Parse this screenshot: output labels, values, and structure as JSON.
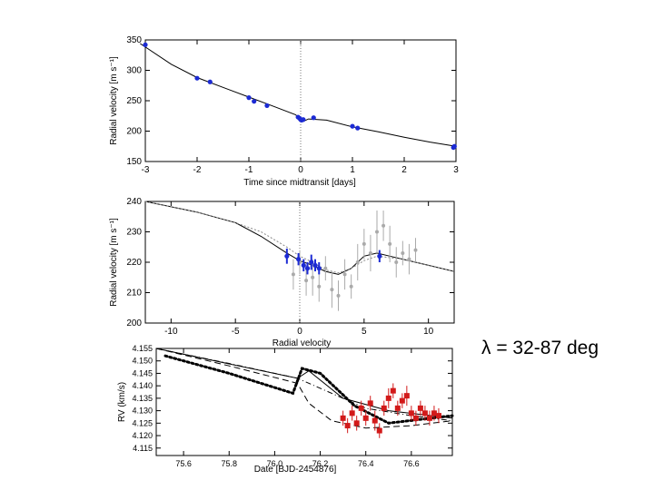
{
  "slide": {
    "caption": "λ = 32-87 deg"
  },
  "chart_data": [
    {
      "type": "line",
      "title": "",
      "xlabel": "Time since midtransit [days]",
      "ylabel": "Radial velocity [m s⁻¹]",
      "xlim": [
        -3,
        3
      ],
      "ylim": [
        150,
        350
      ],
      "xticks": [
        -3,
        -2,
        -1,
        0,
        1,
        2,
        3
      ],
      "yticks": [
        150,
        200,
        250,
        300,
        350
      ],
      "vline_x": 0,
      "series": [
        {
          "name": "model",
          "style": "line",
          "x": [
            -3.1,
            -2.5,
            -2.0,
            -1.5,
            -1.0,
            -0.5,
            -0.1,
            0.0,
            0.05,
            0.15,
            0.5,
            1.0,
            1.5,
            2.0,
            2.5,
            3.0
          ],
          "y": [
            344,
            310,
            288,
            272,
            256,
            240,
            227,
            220,
            216,
            220,
            218,
            207,
            199,
            190,
            182,
            175
          ]
        },
        {
          "name": "RV data",
          "style": "points",
          "x": [
            -3.0,
            -2.0,
            -1.75,
            -1.0,
            -0.9,
            -0.65,
            -0.05,
            -0.02,
            0.0,
            0.02,
            0.05,
            0.25,
            1.0,
            1.1,
            2.95,
            2.97
          ],
          "y": [
            342,
            287,
            281,
            255,
            249,
            242,
            223,
            221,
            219,
            218,
            219,
            222,
            208,
            205,
            173,
            175
          ]
        }
      ]
    },
    {
      "type": "line",
      "title": "",
      "xlabel": "Radial velocity",
      "ylabel": "Radial velocity [m s⁻¹]",
      "xlim": [
        -12,
        12
      ],
      "ylim": [
        200,
        240
      ],
      "xticks": [
        -10,
        -5,
        0,
        5,
        10
      ],
      "yticks": [
        200,
        210,
        220,
        230,
        240
      ],
      "vline_x": 0,
      "series": [
        {
          "name": "model",
          "style": "line",
          "x": [
            -12,
            -8,
            -5,
            -3,
            -1,
            0,
            1,
            2,
            3,
            4,
            5,
            6,
            7,
            8,
            9,
            10,
            12
          ],
          "y": [
            240,
            236.5,
            233,
            228.5,
            223,
            220.5,
            219,
            217,
            216,
            218,
            222,
            223,
            222,
            221,
            220,
            219,
            217
          ]
        },
        {
          "name": "model (alternative)",
          "style": "dotted",
          "x": [
            -12,
            -8,
            -5,
            -3,
            -1,
            0,
            1,
            2,
            3,
            4,
            5,
            6,
            7,
            8,
            10,
            12
          ],
          "y": [
            240,
            236.5,
            233,
            230,
            225,
            222,
            220,
            217.5,
            216.5,
            218,
            220.5,
            222,
            221.5,
            221,
            219,
            217
          ]
        },
        {
          "name": "in-transit data",
          "style": "errorbars-gray",
          "x": [
            -0.5,
            0,
            0.5,
            1,
            1.5,
            2,
            2.5,
            3,
            3.5,
            4,
            4.5,
            5,
            5.5,
            6,
            6.5,
            7,
            7.5,
            8,
            8.5,
            9
          ],
          "y": [
            216,
            220,
            214,
            215,
            212,
            218,
            211,
            209,
            216,
            212,
            220,
            226,
            223,
            230,
            232,
            226,
            220,
            223,
            221,
            224
          ],
          "err": [
            5,
            4,
            5,
            6,
            5,
            4,
            6,
            5,
            5,
            4,
            6,
            5,
            6,
            7,
            5,
            6,
            5,
            4,
            5,
            4
          ]
        },
        {
          "name": "out-of-transit data",
          "style": "errorbars-blue",
          "x": [
            -1.0,
            -0.1,
            0.3,
            0.6,
            0.9,
            1.2,
            1.5,
            6.2
          ],
          "y": [
            222,
            221,
            219,
            218,
            220,
            219,
            218,
            222
          ],
          "err": [
            2.5,
            2,
            2,
            2,
            2.5,
            2,
            2,
            2
          ]
        }
      ]
    },
    {
      "type": "line",
      "title": "",
      "xlabel": "Date [BJD-2454876]",
      "ylabel": "RV (km/s)",
      "xlim": [
        75.48,
        76.78
      ],
      "ylim": [
        4.112,
        4.155
      ],
      "xticks": [
        75.6,
        75.8,
        76.0,
        76.2,
        76.4,
        76.6
      ],
      "yticks": [
        4.115,
        4.12,
        4.125,
        4.13,
        4.135,
        4.14,
        4.145,
        4.15,
        4.155
      ],
      "series": [
        {
          "name": "model solid",
          "style": "solid",
          "x": [
            75.48,
            76.1,
            76.15,
            76.3,
            76.5,
            76.78
          ],
          "y": [
            4.155,
            4.143,
            4.146,
            4.135,
            4.13,
            4.127
          ]
        },
        {
          "name": "model dashed",
          "style": "dashed",
          "x": [
            75.48,
            75.8,
            76.1,
            76.15,
            76.25,
            76.4,
            76.6,
            76.78
          ],
          "y": [
            4.155,
            4.148,
            4.141,
            4.133,
            4.126,
            4.123,
            4.124,
            4.126
          ]
        },
        {
          "name": "model dash-dot",
          "style": "dashdot",
          "x": [
            75.48,
            75.8,
            76.1,
            76.4,
            76.6,
            76.78
          ],
          "y": [
            4.155,
            4.149,
            4.143,
            4.131,
            4.128,
            4.126
          ]
        },
        {
          "name": "model thick dotted",
          "style": "thickdot",
          "x": [
            75.52,
            75.8,
            76.08,
            76.12,
            76.2,
            76.35,
            76.5,
            76.78
          ],
          "y": [
            4.152,
            4.145,
            4.137,
            4.147,
            4.145,
            4.132,
            4.125,
            4.128
          ]
        },
        {
          "name": "RV data",
          "style": "errorbars-red",
          "x": [
            76.3,
            76.32,
            76.34,
            76.36,
            76.38,
            76.4,
            76.42,
            76.44,
            76.46,
            76.48,
            76.5,
            76.52,
            76.54,
            76.56,
            76.58,
            76.6,
            76.62,
            76.64,
            76.66,
            76.68,
            76.7,
            76.72
          ],
          "y": [
            4.127,
            4.124,
            4.129,
            4.125,
            4.131,
            4.127,
            4.133,
            4.126,
            4.122,
            4.131,
            4.135,
            4.138,
            4.131,
            4.134,
            4.136,
            4.129,
            4.127,
            4.131,
            4.129,
            4.127,
            4.129,
            4.128
          ],
          "err": [
            0.003,
            0.003,
            0.003,
            0.003,
            0.003,
            0.003,
            0.003,
            0.004,
            0.003,
            0.003,
            0.004,
            0.003,
            0.003,
            0.003,
            0.004,
            0.003,
            0.003,
            0.003,
            0.003,
            0.003,
            0.003,
            0.003
          ]
        }
      ]
    }
  ]
}
